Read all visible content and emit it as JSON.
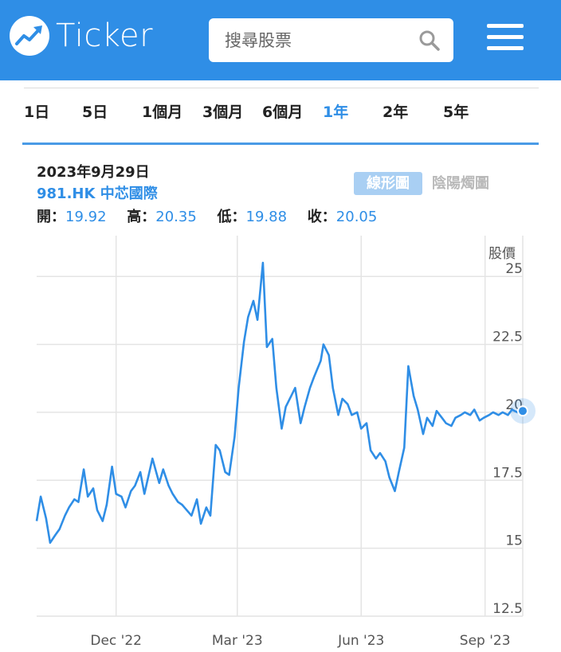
{
  "app": {
    "name": "Ticker"
  },
  "colors": {
    "brand": "#2f8ee6",
    "line": "#2f8ee6",
    "grid": "#e4e4e4"
  },
  "search": {
    "placeholder": "搜尋股票",
    "value": ""
  },
  "icons": {
    "logo": "chart-up-arrow-icon",
    "search": "search-icon",
    "menu": "hamburger-menu-icon"
  },
  "ranges": [
    {
      "label": "1日",
      "active": false
    },
    {
      "label": "5日",
      "active": false
    },
    {
      "label": "1個月",
      "active": false
    },
    {
      "label": "3個月",
      "active": false
    },
    {
      "label": "6個月",
      "active": false
    },
    {
      "label": "1年",
      "active": true
    },
    {
      "label": "2年",
      "active": false
    },
    {
      "label": "5年",
      "active": false
    }
  ],
  "quote": {
    "date": "2023年9月29日",
    "name": "981.HK 中芯國際",
    "open_label": "開：",
    "open": "19.92",
    "high_label": "高：",
    "high": "20.35",
    "low_label": "低：",
    "low": "19.88",
    "close_label": "收：",
    "close": "20.05"
  },
  "chart_toggle": {
    "line": "線形圖",
    "candle": "陰陽燭圖",
    "active": "line"
  },
  "chart_data": {
    "type": "line",
    "ylabel": "股價",
    "ylim": [
      12.5,
      26.5
    ],
    "yticks": [
      "12.5",
      "15",
      "17.5",
      "20",
      "22.5",
      "25"
    ],
    "xticks": [
      "Dec '22",
      "Mar '23",
      "Jun '23",
      "Sep '23"
    ],
    "x_range": [
      "2022-10-03",
      "2023-09-29"
    ],
    "grid": true,
    "series": [
      {
        "x": [
          "2022-10-03",
          "2022-10-06",
          "2022-10-10",
          "2022-10-13",
          "2022-10-17",
          "2022-10-20",
          "2022-10-24",
          "2022-10-27",
          "2022-10-31",
          "2022-11-03",
          "2022-11-07",
          "2022-11-10",
          "2022-11-14",
          "2022-11-17",
          "2022-11-21",
          "2022-11-24",
          "2022-11-28",
          "2022-12-01",
          "2022-12-05",
          "2022-12-08",
          "2022-12-12",
          "2022-12-15",
          "2022-12-19",
          "2022-12-22",
          "2022-12-28",
          "2023-01-02",
          "2023-01-05",
          "2023-01-09",
          "2023-01-12",
          "2023-01-16",
          "2023-01-19",
          "2023-01-26",
          "2023-01-30",
          "2023-02-02",
          "2023-02-06",
          "2023-02-09",
          "2023-02-13",
          "2023-02-16",
          "2023-02-20",
          "2023-02-23",
          "2023-02-27",
          "2023-03-02",
          "2023-03-06",
          "2023-03-09",
          "2023-03-13",
          "2023-03-16",
          "2023-03-20",
          "2023-03-23",
          "2023-03-27",
          "2023-03-30",
          "2023-04-03",
          "2023-04-06",
          "2023-04-10",
          "2023-04-13",
          "2023-04-17",
          "2023-04-20",
          "2023-04-24",
          "2023-04-27",
          "2023-05-02",
          "2023-05-04",
          "2023-05-08",
          "2023-05-11",
          "2023-05-15",
          "2023-05-18",
          "2023-05-22",
          "2023-05-25",
          "2023-05-29",
          "2023-06-01",
          "2023-06-05",
          "2023-06-08",
          "2023-06-12",
          "2023-06-15",
          "2023-06-19",
          "2023-06-22",
          "2023-06-26",
          "2023-06-29",
          "2023-07-03",
          "2023-07-06",
          "2023-07-10",
          "2023-07-13",
          "2023-07-17",
          "2023-07-20",
          "2023-07-24",
          "2023-07-27",
          "2023-07-31",
          "2023-08-03",
          "2023-08-07",
          "2023-08-10",
          "2023-08-14",
          "2023-08-17",
          "2023-08-21",
          "2023-08-24",
          "2023-08-28",
          "2023-08-31",
          "2023-09-04",
          "2023-09-07",
          "2023-09-11",
          "2023-09-14",
          "2023-09-18",
          "2023-09-21",
          "2023-09-25",
          "2023-09-29"
        ],
        "y": [
          16.0,
          16.9,
          16.1,
          15.2,
          15.5,
          15.7,
          16.2,
          16.5,
          16.8,
          16.7,
          17.9,
          16.9,
          17.2,
          16.4,
          16.0,
          16.6,
          18.0,
          17.0,
          16.9,
          16.5,
          17.1,
          17.3,
          17.8,
          17.0,
          18.3,
          17.4,
          17.9,
          17.3,
          17.0,
          16.7,
          16.6,
          16.2,
          16.8,
          15.9,
          16.5,
          16.2,
          18.8,
          18.6,
          17.8,
          17.7,
          19.1,
          20.9,
          22.6,
          23.5,
          24.1,
          23.4,
          25.5,
          22.4,
          22.7,
          20.9,
          19.4,
          20.2,
          20.6,
          20.9,
          19.6,
          20.2,
          20.9,
          21.3,
          21.9,
          22.5,
          22.1,
          20.9,
          19.9,
          20.5,
          20.3,
          19.9,
          20.0,
          19.4,
          19.6,
          18.6,
          18.3,
          18.5,
          18.2,
          17.6,
          17.1,
          17.8,
          18.7,
          21.7,
          20.6,
          20.1,
          19.2,
          19.8,
          19.5,
          20.05,
          19.8,
          19.6,
          19.5,
          19.8,
          19.9,
          20.0,
          19.9,
          20.1,
          19.7,
          19.8,
          19.9,
          20.0,
          19.9,
          20.0,
          19.9,
          20.1,
          20.0,
          20.05
        ],
        "name": ""
      }
    ],
    "last_point": {
      "x": "2023-09-29",
      "y": 20.05
    }
  }
}
